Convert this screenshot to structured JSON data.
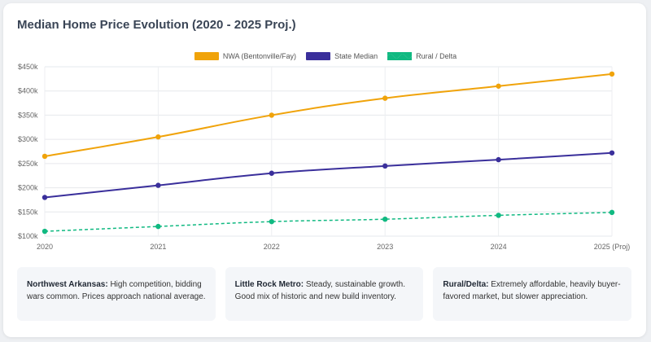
{
  "title": "Median Home Price Evolution (2020 - 2025 Proj.)",
  "chart_data": {
    "type": "line",
    "title": "Median Home Price Evolution (2020 - 2025 Proj.)",
    "categories": [
      "2020",
      "2021",
      "2022",
      "2023",
      "2024",
      "2025 (Proj)"
    ],
    "ylim": [
      100,
      450
    ],
    "yticks": [
      "$100k",
      "$150k",
      "$200k",
      "$250k",
      "$300k",
      "$350k",
      "$400k",
      "$450k"
    ],
    "ytick_values": [
      100,
      150,
      200,
      250,
      300,
      350,
      400,
      450
    ],
    "grid": true,
    "legend_position": "top-center",
    "series": [
      {
        "name": "NWA (Bentonville/Fay)",
        "color": "#f0a30a",
        "dashed": false,
        "values": [
          265,
          305,
          350,
          385,
          410,
          435
        ]
      },
      {
        "name": "State Median",
        "color": "#3a2f9b",
        "dashed": false,
        "values": [
          180,
          205,
          230,
          245,
          258,
          272
        ]
      },
      {
        "name": "Rural / Delta",
        "color": "#10b981",
        "dashed": true,
        "values": [
          110,
          120,
          130,
          135,
          143,
          149
        ]
      }
    ]
  },
  "notes": [
    {
      "heading": "Northwest Arkansas:",
      "text": "High competition, bidding wars common. Prices approach national average."
    },
    {
      "heading": "Little Rock Metro:",
      "text": "Steady, sustainable growth. Good mix of historic and new build inventory."
    },
    {
      "heading": "Rural/Delta:",
      "text": "Extremely affordable, heavily buyer-favored market, but slower appreciation."
    }
  ]
}
